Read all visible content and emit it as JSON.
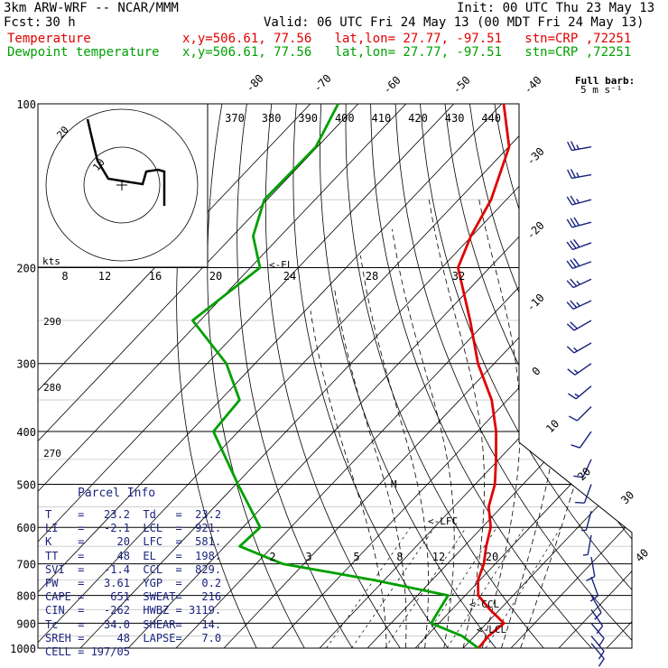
{
  "header": {
    "model": "3km ARW-WRF -- NCAR/MMM",
    "init": "Init: 00 UTC Thu 23 May 13",
    "fcst_label": "Fcst:",
    "fcst_value": "30 h",
    "valid": "Valid: 06 UTC Fri 24 May 13 (00 MDT Fri 24 May 13)",
    "temp_label": "Temperature",
    "dew_label": "Dewpoint temperature",
    "loc_line": "x,y=506.61, 77.56   lat,lon= 27.77, -97.51   stn=CRP ,72251"
  },
  "barb_legend": {
    "title": "Full barb:",
    "units": "5 m s⁻¹"
  },
  "hodograph": {
    "units": "kts",
    "ring_labels": [
      "10",
      "20"
    ]
  },
  "annotations": {
    "el": "<-EL",
    "lfc": "<-LFC",
    "ccl": "<-CCL",
    "lcl": "<-LCL",
    "m": "M"
  },
  "parcel_info": {
    "title": "Parcel Info",
    "rows": [
      [
        "T",
        "23.2",
        "Td",
        "23.2"
      ],
      [
        "LI",
        "-2.1",
        "LCL",
        "921."
      ],
      [
        "K",
        "20",
        "LFC",
        "581."
      ],
      [
        "TT",
        "48",
        "EL",
        "198."
      ],
      [
        "SVI",
        "-1.4",
        "CCL",
        "829."
      ],
      [
        "PW",
        "3.61",
        "YGP",
        "0.2"
      ],
      [
        "CAPE",
        "651",
        "SWEAT",
        "216"
      ],
      [
        "CIN",
        "-262",
        "HWBZ",
        "3119."
      ],
      [
        "Tc",
        "34.0",
        "SHEAR",
        "14."
      ],
      [
        "SREH",
        "48",
        "LAPSE",
        "7.0"
      ],
      [
        "CELL",
        "197/05",
        "",
        ""
      ]
    ]
  },
  "chart_data": {
    "type": "line",
    "title": "",
    "xlabel": "",
    "ylabel": "",
    "pressure_levels": [
      100,
      200,
      300,
      400,
      500,
      600,
      700,
      800,
      900,
      1000
    ],
    "isotherm_labels": [
      "-80",
      "-70",
      "-60",
      "-50",
      "-40",
      "-30",
      "-20",
      "-10",
      "0",
      "10",
      "20",
      "30",
      "40"
    ],
    "theta_labels": [
      "370",
      "380",
      "390",
      "400",
      "410",
      "420",
      "430",
      "440"
    ],
    "mixing_ratio_upper": [
      "8",
      "12",
      "16",
      "20",
      "24",
      "28",
      "32"
    ],
    "mixing_ratio_lower": [
      "2",
      "3",
      "5",
      "8",
      "12",
      "20"
    ],
    "theta_left_labels": [
      "290",
      "280",
      "270"
    ],
    "series": [
      {
        "name": "Temperature",
        "color": "#e00000",
        "points": [
          [
            100,
            -79.6
          ],
          [
            120,
            -69.9
          ],
          [
            150,
            -63.2
          ],
          [
            175,
            -60.2
          ],
          [
            200,
            -56.6
          ],
          [
            250,
            -43.6
          ],
          [
            300,
            -33.4
          ],
          [
            350,
            -23.3
          ],
          [
            400,
            -16.1
          ],
          [
            450,
            -10.6
          ],
          [
            500,
            -5.9
          ],
          [
            550,
            -2.7
          ],
          [
            600,
            1.8
          ],
          [
            650,
            4.6
          ],
          [
            700,
            7.6
          ],
          [
            750,
            9.6
          ],
          [
            800,
            12.7
          ],
          [
            850,
            18.0
          ],
          [
            900,
            23.6
          ],
          [
            950,
            22.9
          ],
          [
            1000,
            23.2
          ]
        ]
      },
      {
        "name": "Dewpoint temperature",
        "color": "#00a000",
        "points": [
          [
            100,
            -114.2
          ],
          [
            120,
            -110.3
          ],
          [
            150,
            -110.6
          ],
          [
            175,
            -105.7
          ],
          [
            200,
            -98.0
          ],
          [
            250,
            -101.6
          ],
          [
            300,
            -86.0
          ],
          [
            350,
            -76.0
          ],
          [
            400,
            -75.2
          ],
          [
            500,
            -59.6
          ],
          [
            600,
            -46.4
          ],
          [
            650,
            -46.9
          ],
          [
            700,
            -34.5
          ],
          [
            750,
            -12.0
          ],
          [
            800,
            6.4
          ],
          [
            850,
            7.4
          ],
          [
            900,
            8.4
          ],
          [
            950,
            17.4
          ],
          [
            1000,
            23.2
          ]
        ]
      }
    ],
    "wind_barbs": [
      {
        "p": 120,
        "dir": 260,
        "spd": 25
      },
      {
        "p": 135,
        "dir": 260,
        "spd": 25
      },
      {
        "p": 150,
        "dir": 255,
        "spd": 25
      },
      {
        "p": 165,
        "dir": 255,
        "spd": 30
      },
      {
        "p": 180,
        "dir": 250,
        "spd": 30
      },
      {
        "p": 195,
        "dir": 250,
        "spd": 30
      },
      {
        "p": 210,
        "dir": 245,
        "spd": 25
      },
      {
        "p": 230,
        "dir": 245,
        "spd": 25
      },
      {
        "p": 250,
        "dir": 240,
        "spd": 20
      },
      {
        "p": 275,
        "dir": 240,
        "spd": 15
      },
      {
        "p": 300,
        "dir": 235,
        "spd": 15
      },
      {
        "p": 330,
        "dir": 230,
        "spd": 15
      },
      {
        "p": 360,
        "dir": 225,
        "spd": 10
      },
      {
        "p": 400,
        "dir": 215,
        "spd": 10
      },
      {
        "p": 450,
        "dir": 205,
        "spd": 10
      },
      {
        "p": 500,
        "dir": 200,
        "spd": 10
      },
      {
        "p": 560,
        "dir": 195,
        "spd": 5
      },
      {
        "p": 620,
        "dir": 190,
        "spd": 5
      },
      {
        "p": 680,
        "dir": 170,
        "spd": 10
      },
      {
        "p": 740,
        "dir": 160,
        "spd": 10
      },
      {
        "p": 800,
        "dir": 150,
        "spd": 10
      },
      {
        "p": 850,
        "dir": 145,
        "spd": 10
      },
      {
        "p": 900,
        "dir": 140,
        "spd": 10
      },
      {
        "p": 950,
        "dir": 140,
        "spd": 10
      },
      {
        "p": 980,
        "dir": 140,
        "spd": 10
      }
    ]
  }
}
